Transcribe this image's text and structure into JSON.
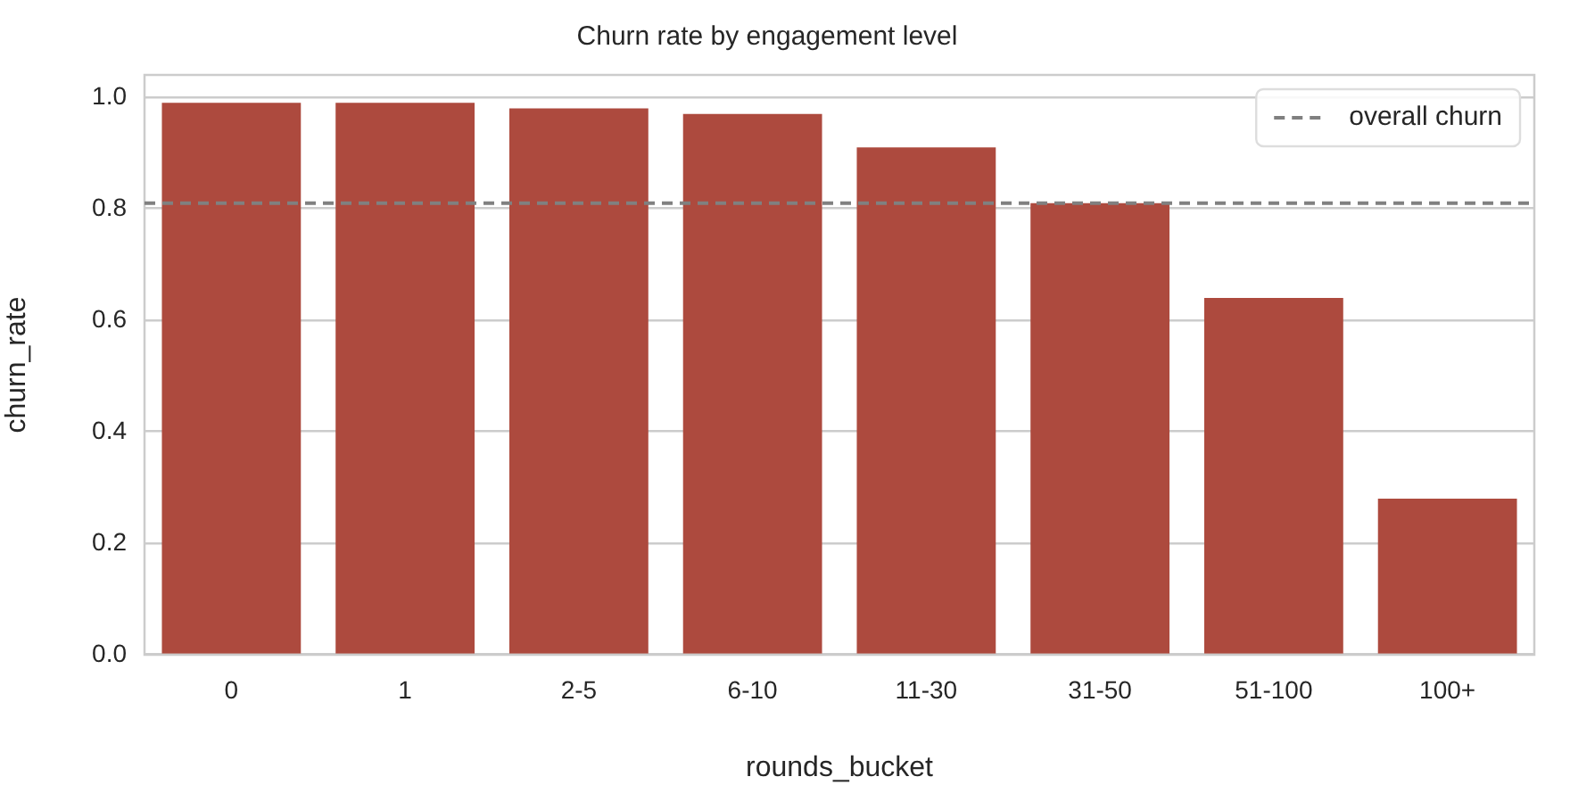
{
  "chart_data": {
    "type": "bar",
    "title": "Churn rate by engagement level",
    "xlabel": "rounds_bucket",
    "ylabel": "churn_rate",
    "categories": [
      "0",
      "1",
      "2-5",
      "6-10",
      "11-30",
      "31-50",
      "51-100",
      "100+"
    ],
    "values": [
      0.99,
      0.99,
      0.98,
      0.97,
      0.91,
      0.81,
      0.64,
      0.28
    ],
    "color": "#ad4a3e",
    "ylim": [
      0,
      1.04
    ],
    "yticks": [
      {
        "value": 0,
        "label": "0.0"
      },
      0.2,
      0.4,
      0.6,
      0.8,
      {
        "value": 1,
        "label": "1.0"
      }
    ],
    "grid": "y",
    "legend": "top right",
    "ref_lines": [
      {
        "axis": "y",
        "value": 0.81,
        "label": "overall churn",
        "color": "#808080",
        "line_style": "dashed"
      }
    ]
  }
}
